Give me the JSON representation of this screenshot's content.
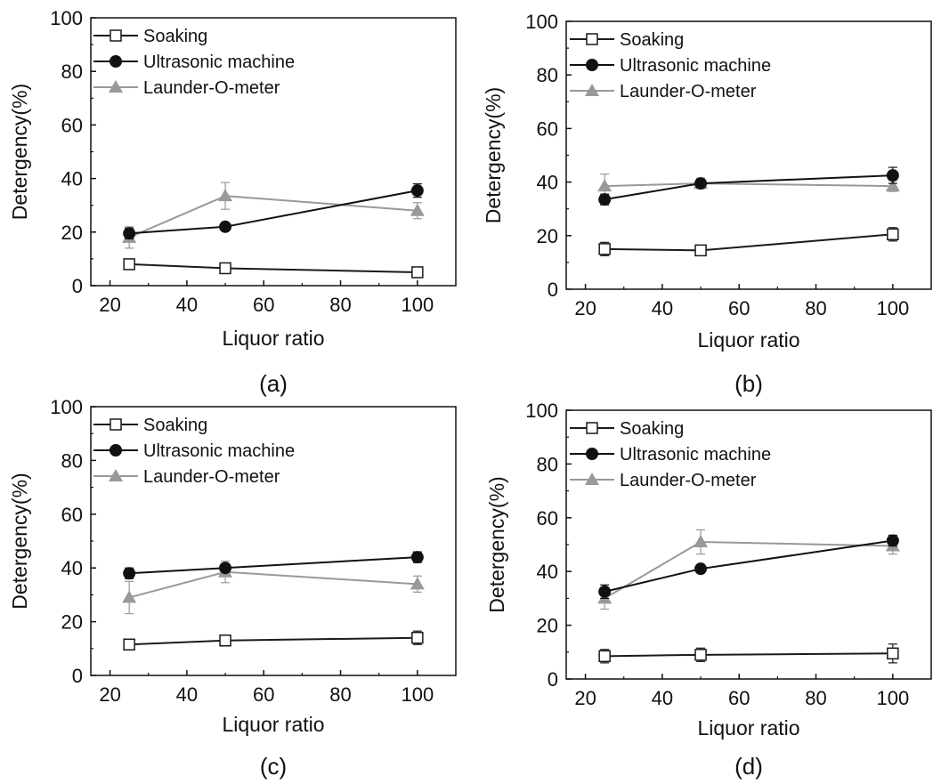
{
  "chart_data": [
    {
      "panel_label": "(a)",
      "type": "line",
      "xlabel": "Liquor ratio",
      "ylabel": "Detergency(%)",
      "xlim": [
        15,
        110
      ],
      "ylim": [
        0,
        100
      ],
      "xticks": [
        20,
        40,
        60,
        80,
        100
      ],
      "yticks": [
        0,
        20,
        40,
        60,
        80,
        100
      ],
      "legend_position": "top-left",
      "x": [
        25,
        50,
        100
      ],
      "series": [
        {
          "name": "Soaking",
          "values": [
            8,
            6.5,
            5
          ],
          "errors": [
            1,
            1.5,
            1.5
          ]
        },
        {
          "name": "Ultrasonic machine",
          "values": [
            19.5,
            22,
            35.5
          ],
          "errors": [
            2,
            1,
            2.5
          ]
        },
        {
          "name": "Launder-O-meter",
          "values": [
            18,
            33.5,
            28
          ],
          "errors": [
            4,
            5,
            3
          ]
        }
      ]
    },
    {
      "panel_label": "(b)",
      "type": "line",
      "xlabel": "Liquor ratio",
      "ylabel": "Detergency(%)",
      "xlim": [
        15,
        110
      ],
      "ylim": [
        0,
        100
      ],
      "xticks": [
        20,
        40,
        60,
        80,
        100
      ],
      "yticks": [
        0,
        20,
        40,
        60,
        80,
        100
      ],
      "legend_position": "top-left",
      "x": [
        25,
        50,
        100
      ],
      "series": [
        {
          "name": "Soaking",
          "values": [
            15,
            14.5,
            20.5
          ],
          "errors": [
            2.5,
            1,
            2.5
          ]
        },
        {
          "name": "Ultrasonic machine",
          "values": [
            33.5,
            39.5,
            42.5
          ],
          "errors": [
            2,
            1.5,
            3
          ]
        },
        {
          "name": "Launder-O-meter",
          "values": [
            38.5,
            39.5,
            38.5
          ],
          "errors": [
            4.5,
            2,
            2
          ]
        }
      ]
    },
    {
      "panel_label": "(c)",
      "type": "line",
      "xlabel": "Liquor ratio",
      "ylabel": "Detergency(%)",
      "xlim": [
        15,
        110
      ],
      "ylim": [
        0,
        100
      ],
      "xticks": [
        20,
        40,
        60,
        80,
        100
      ],
      "yticks": [
        0,
        20,
        40,
        60,
        80,
        100
      ],
      "legend_position": "top-left",
      "x": [
        25,
        50,
        100
      ],
      "series": [
        {
          "name": "Soaking",
          "values": [
            11.5,
            13,
            14
          ],
          "errors": [
            2,
            1,
            2.5
          ]
        },
        {
          "name": "Ultrasonic machine",
          "values": [
            38,
            40,
            44
          ],
          "errors": [
            2,
            1.5,
            2
          ]
        },
        {
          "name": "Launder-O-meter",
          "values": [
            29,
            38.5,
            34
          ],
          "errors": [
            6,
            4,
            3
          ]
        }
      ]
    },
    {
      "panel_label": "(d)",
      "type": "line",
      "xlabel": "Liquor ratio",
      "ylabel": "Detergency(%)",
      "xlim": [
        15,
        110
      ],
      "ylim": [
        0,
        100
      ],
      "xticks": [
        20,
        40,
        60,
        80,
        100
      ],
      "yticks": [
        0,
        20,
        40,
        60,
        80,
        100
      ],
      "legend_position": "top-left",
      "x": [
        25,
        50,
        100
      ],
      "series": [
        {
          "name": "Soaking",
          "values": [
            8.5,
            9,
            9.5
          ],
          "errors": [
            2.5,
            2.5,
            3.5
          ]
        },
        {
          "name": "Ultrasonic machine",
          "values": [
            32.5,
            41,
            51.5
          ],
          "errors": [
            2.5,
            1,
            2
          ]
        },
        {
          "name": "Launder-O-meter",
          "values": [
            30,
            51,
            49.5
          ],
          "errors": [
            4,
            4.5,
            3
          ]
        }
      ]
    }
  ],
  "style": {
    "soaking_color": "#1a1a1a",
    "ultrasonic_color": "#111111",
    "launder_color": "#999999",
    "soaking_marker": "open-square",
    "ultrasonic_marker": "filled-circle",
    "launder_marker": "filled-triangle"
  }
}
